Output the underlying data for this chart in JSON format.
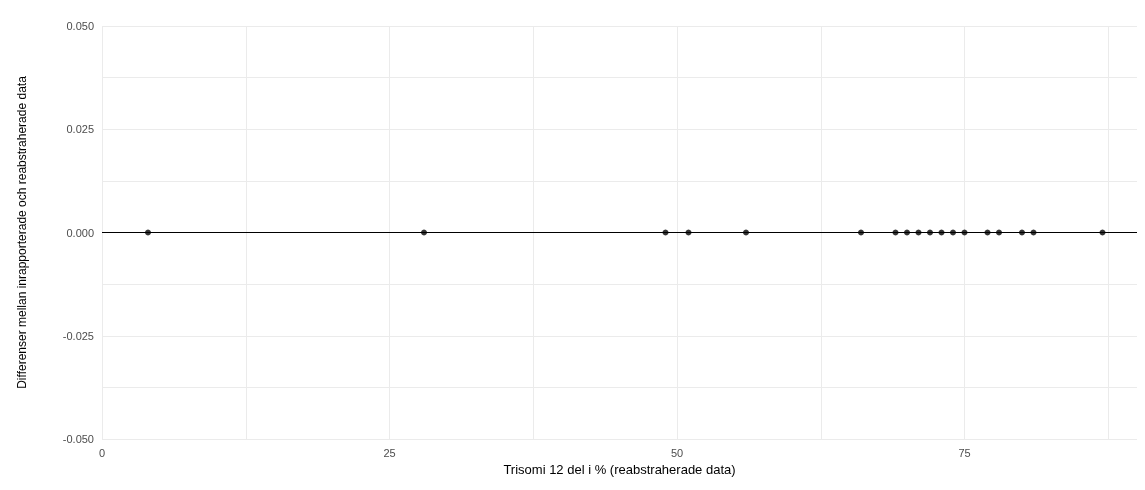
{
  "chart_data": {
    "type": "scatter",
    "xlabel": "Trisomi 12 del i % (reabstraherade data)",
    "ylabel": "Differenser mellan inrapporterade och reabstraherade data",
    "x": [
      4,
      28,
      49,
      51,
      56,
      66,
      69,
      70,
      71,
      72,
      73,
      74,
      75,
      77,
      78,
      80,
      81,
      87
    ],
    "values": [
      0,
      0,
      0,
      0,
      0,
      0,
      0,
      0,
      0,
      0,
      0,
      0,
      0,
      0,
      0,
      0,
      0,
      0
    ],
    "color": "#000000",
    "marker": "circle",
    "grid": true,
    "xlim": [
      0,
      90
    ],
    "xticks": [
      0,
      {
        "value": 12.5,
        "label": null
      },
      25,
      {
        "value": 37.5,
        "label": null
      },
      50,
      {
        "value": 62.5,
        "label": null
      },
      75,
      {
        "value": 87.5,
        "label": null
      }
    ],
    "ylim": [
      -0.05,
      0.05
    ],
    "yticks": [
      {
        "value": -0.05,
        "label": "-0.050"
      },
      {
        "value": -0.0375,
        "label": null
      },
      {
        "value": -0.025,
        "label": "-0.025"
      },
      {
        "value": -0.0125,
        "label": null
      },
      {
        "value": 0,
        "label": "0.000"
      },
      {
        "value": 0.0125,
        "label": null
      },
      {
        "value": 0.025,
        "label": "0.025"
      },
      {
        "value": 0.0375,
        "label": null
      },
      {
        "value": 0.05,
        "label": "0.050"
      }
    ],
    "ref_lines": [
      {
        "axis": "y",
        "value": 0,
        "color": "#000000"
      }
    ]
  }
}
